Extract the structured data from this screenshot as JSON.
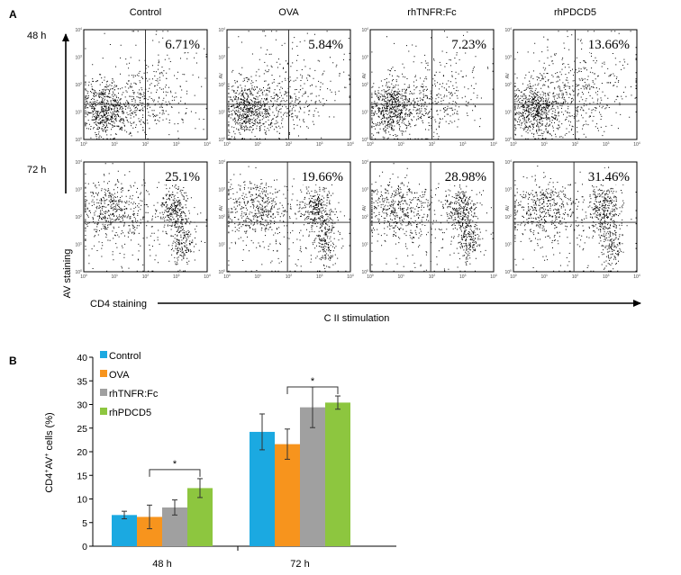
{
  "panel_a": {
    "label": "A",
    "conditions": [
      "Control",
      "OVA",
      "rhTNFR:Fc",
      "rhPDCD5"
    ],
    "timepoints": [
      "48 h",
      "72 h"
    ],
    "percentages": [
      [
        "6.71%",
        "5.84%",
        "7.23%",
        "13.66%"
      ],
      [
        "25.1%",
        "19.66%",
        "28.98%",
        "31.46%"
      ]
    ],
    "y_axis_label": "AV staining",
    "x_axis_label": "CD4 staining",
    "stimulation_label": "C II stimulation",
    "flow_y_label": "AV",
    "decade_ticks": [
      "10",
      "10",
      "10",
      "10",
      "10"
    ],
    "decade_exps": [
      "0",
      "1",
      "2",
      "3",
      "4"
    ]
  },
  "panel_b": {
    "label": "B",
    "significance_marker": "*"
  },
  "chart_data": {
    "type": "bar",
    "categories": [
      "48 h",
      "72 h"
    ],
    "series": [
      {
        "name": "Control",
        "color": "#1ba9e1",
        "values": [
          6.6,
          24.2
        ],
        "errors": [
          0.8,
          3.8
        ]
      },
      {
        "name": "OVA",
        "color": "#f7941d",
        "values": [
          6.2,
          21.6
        ],
        "errors": [
          2.5,
          3.2
        ]
      },
      {
        "name": "rhTNFR:Fc",
        "color": "#a0a0a0",
        "values": [
          8.2,
          29.4
        ],
        "errors": [
          1.6,
          4.3
        ]
      },
      {
        "name": "rhPDCD5",
        "color": "#8dc63f",
        "values": [
          12.3,
          30.4
        ],
        "errors": [
          2.0,
          1.4
        ]
      }
    ],
    "ylabel_main": "CD4",
    "ylabel_sup1": "+",
    "ylabel_mid": "AV",
    "ylabel_sup2": "+",
    "ylabel_tail": " cells (%)",
    "ylim": [
      0,
      40
    ],
    "yticks": [
      0,
      5,
      10,
      15,
      20,
      25,
      30,
      35,
      40
    ],
    "grid": false,
    "legend": "top-left",
    "significance": "*"
  }
}
